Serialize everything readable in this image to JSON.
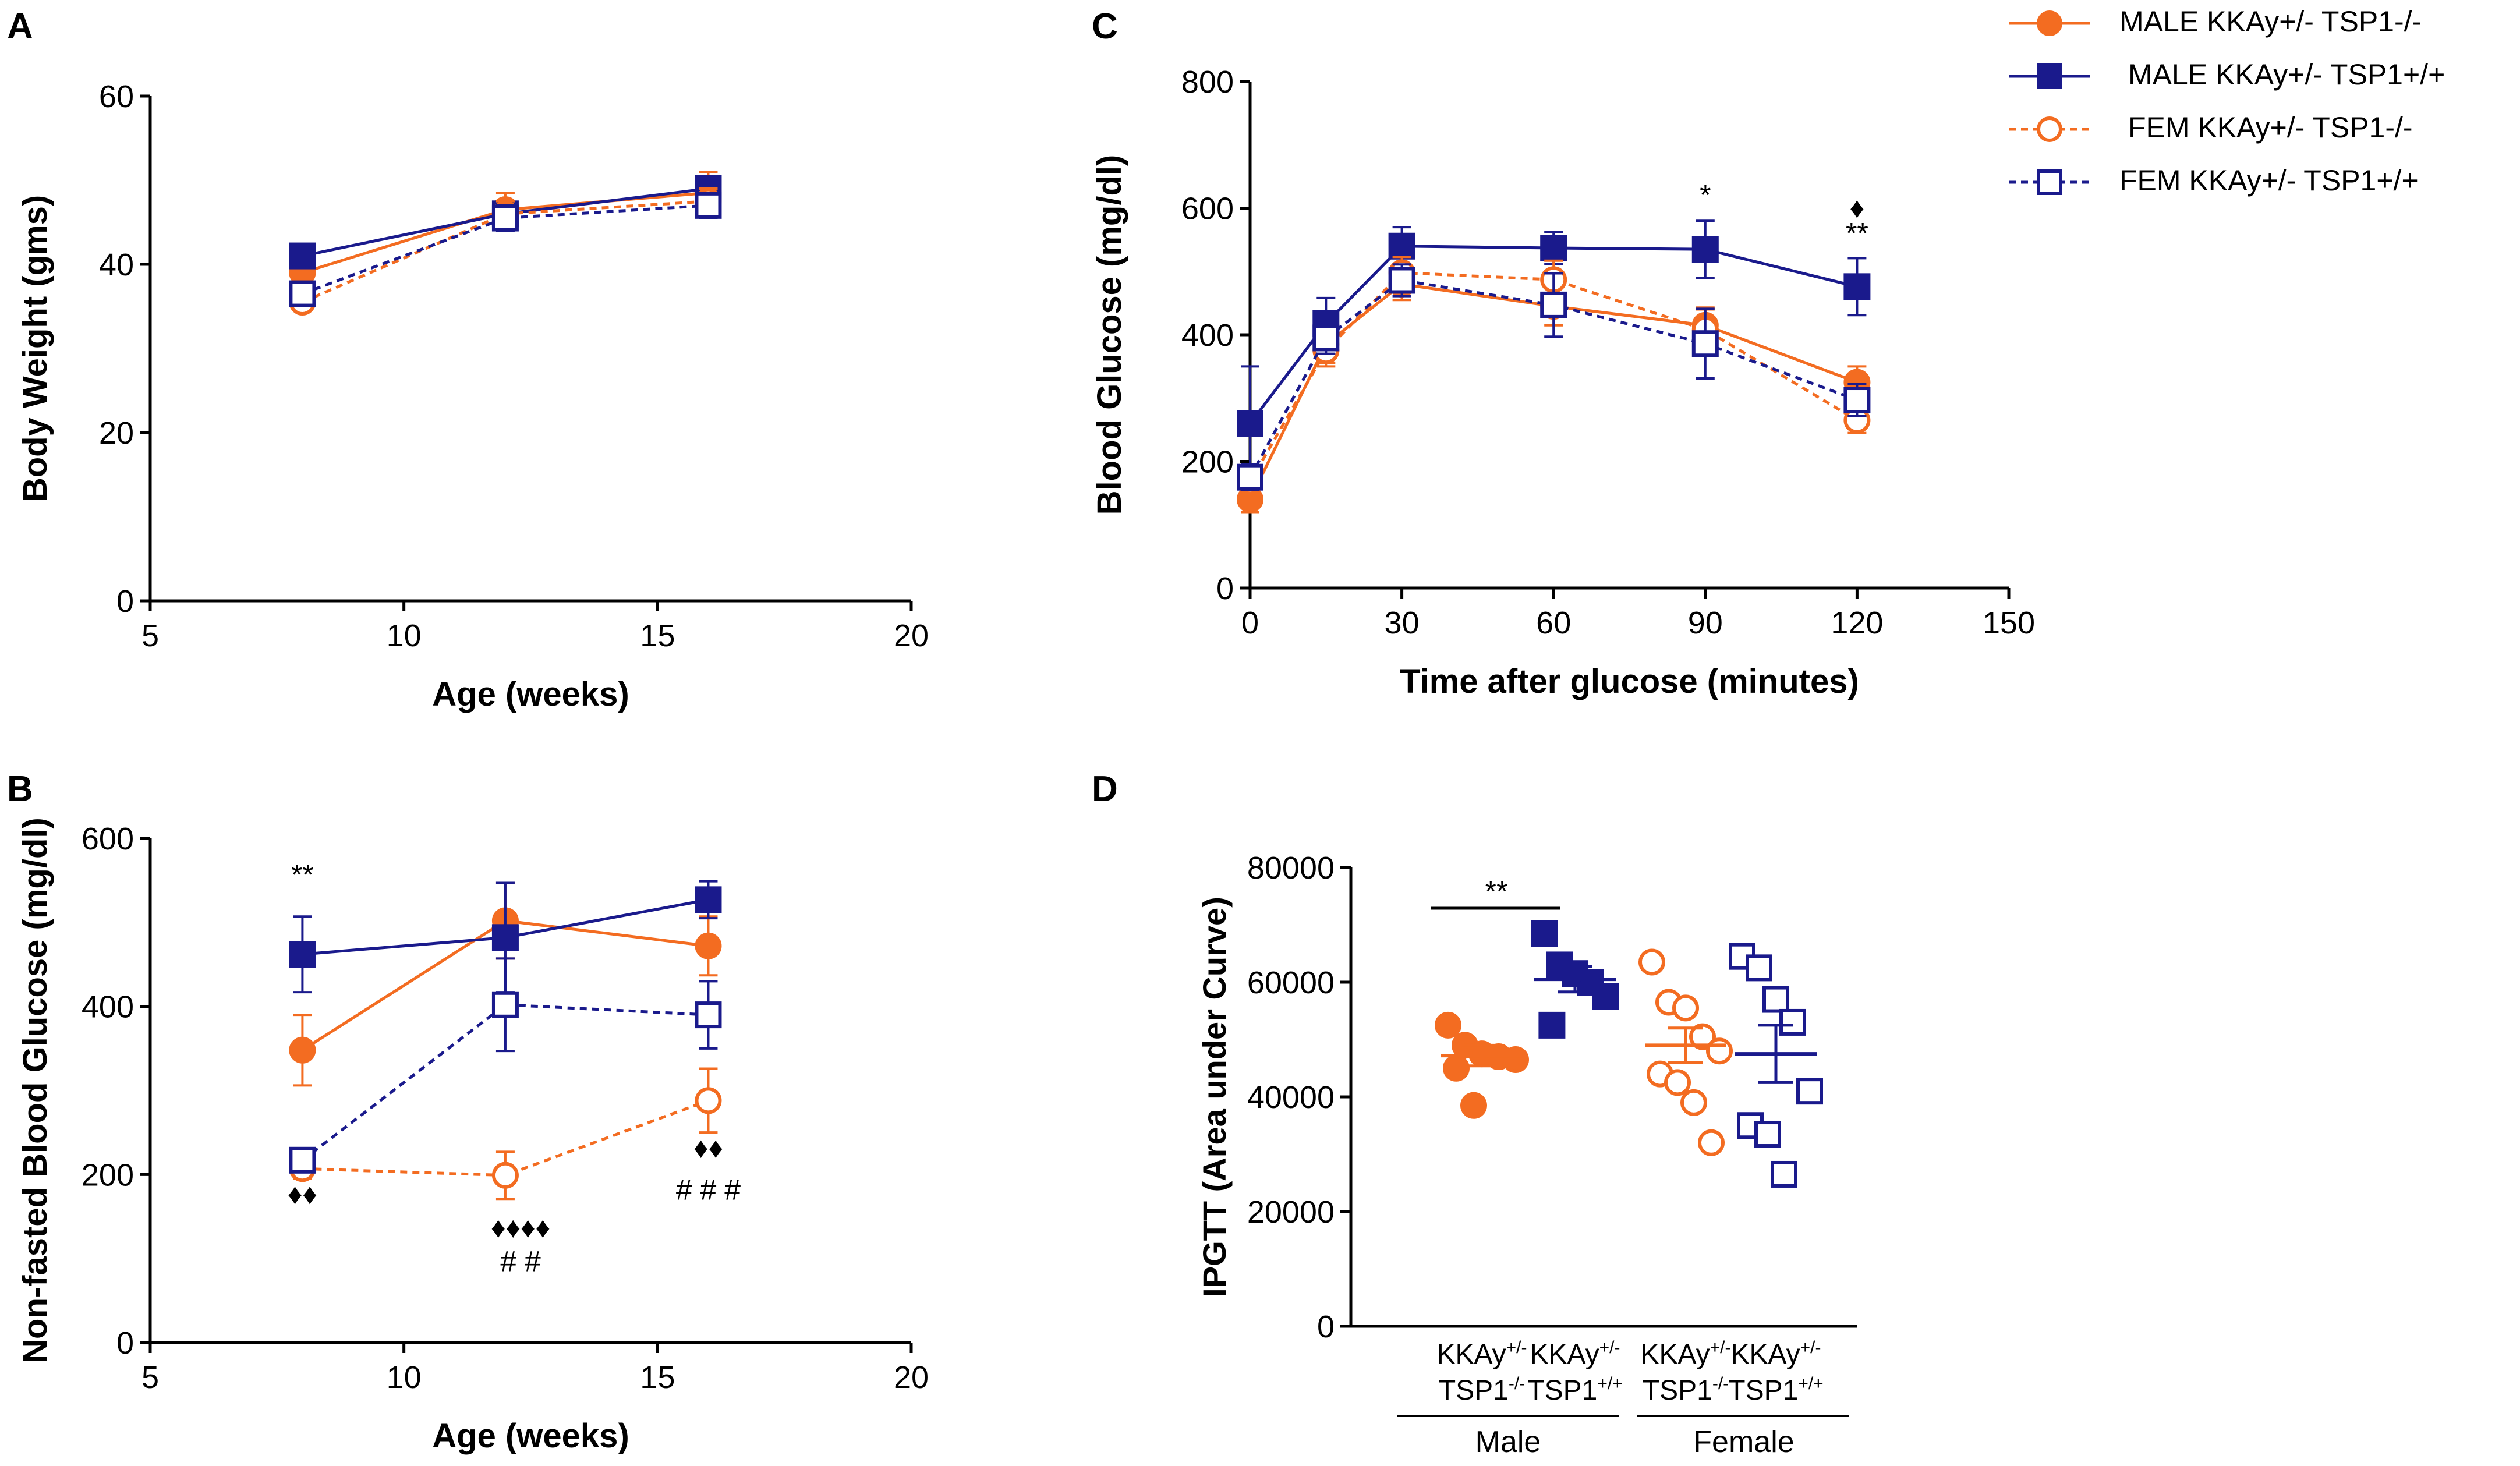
{
  "colors": {
    "orange": "#f36c21",
    "navy": "#1a1a8c",
    "black": "#000000"
  },
  "legend": {
    "entries": [
      {
        "label": "MALE KKAy+/- TSP1-/-",
        "series": "mt"
      },
      {
        "label": "MALE KKAy+/- TSP1+/+",
        "series": "mw"
      },
      {
        "label": "FEM KKAy+/- TSP1-/-",
        "series": "ft"
      },
      {
        "label": "FEM KKAy+/- TSP1+/+",
        "series": "fw"
      }
    ]
  },
  "chart_data": [
    {
      "panel": "A",
      "type": "line",
      "xlabel": "Age (weeks)",
      "ylabel": "Body Weight (gms)",
      "xlim": [
        5,
        20
      ],
      "ylim": [
        0,
        60
      ],
      "xticks": [
        5,
        10,
        15,
        20
      ],
      "yticks": [
        0,
        20,
        40,
        60
      ],
      "series": [
        {
          "key": "mt",
          "name": "MALE KKAy+/- TSP1-/-",
          "x": [
            8,
            12,
            16
          ],
          "y": [
            39,
            46.5,
            48.5
          ],
          "err": [
            1.5,
            2,
            2.5
          ]
        },
        {
          "key": "mw",
          "name": "MALE KKAy+/- TSP1+/+",
          "x": [
            8,
            12,
            16
          ],
          "y": [
            41,
            46,
            49
          ],
          "err": [
            1,
            1.5,
            1.5
          ]
        },
        {
          "key": "ft",
          "name": "FEM KKAy+/- TSP1-/-",
          "x": [
            8,
            12,
            16
          ],
          "y": [
            35.5,
            46,
            47.5
          ],
          "err": [
            1,
            1.5,
            1.5
          ]
        },
        {
          "key": "fw",
          "name": "FEM KKAy+/- TSP1+/+",
          "x": [
            8,
            12,
            16
          ],
          "y": [
            36.5,
            45.5,
            47
          ],
          "err": [
            1,
            1.5,
            1.5
          ]
        }
      ],
      "annotations": []
    },
    {
      "panel": "B",
      "type": "line",
      "xlabel": "Age (weeks)",
      "ylabel": "Non-fasted Blood Glucose (mg/dl)",
      "xlim": [
        5,
        20
      ],
      "ylim": [
        0,
        600
      ],
      "xticks": [
        5,
        10,
        15,
        20
      ],
      "yticks": [
        0,
        200,
        400,
        600
      ],
      "series": [
        {
          "key": "mt",
          "name": "MALE KKAy+/- TSP1-/-",
          "x": [
            8,
            12,
            16
          ],
          "y": [
            348,
            502,
            472
          ],
          "err": [
            42,
            45,
            35
          ]
        },
        {
          "key": "mw",
          "name": "MALE KKAy+/- TSP1+/+",
          "x": [
            8,
            12,
            16
          ],
          "y": [
            462,
            482,
            527
          ],
          "err": [
            45,
            65,
            22
          ]
        },
        {
          "key": "ft",
          "name": "FEM KKAy+/- TSP1-/-",
          "x": [
            8,
            12,
            16
          ],
          "y": [
            207,
            199,
            288
          ],
          "err": [
            12,
            28,
            38
          ]
        },
        {
          "key": "fw",
          "name": "FEM KKAy+/- TSP1+/+",
          "x": [
            8,
            12,
            16
          ],
          "y": [
            217,
            402,
            390
          ],
          "err": [
            12,
            55,
            40
          ]
        }
      ],
      "annotations": [
        {
          "text": "**",
          "x": 8,
          "y": 545
        },
        {
          "text": "♦♦",
          "x": 8,
          "y": 165
        },
        {
          "text": "♦♦♦♦",
          "x": 12.3,
          "y": 125
        },
        {
          "text": "# #",
          "x": 12.3,
          "y": 85
        },
        {
          "text": "♦♦",
          "x": 16,
          "y": 220
        },
        {
          "text": "# # #",
          "x": 16,
          "y": 170
        }
      ]
    },
    {
      "panel": "C",
      "type": "line",
      "xlabel": "Time after glucose (minutes)",
      "ylabel": "Blood Glucose (mg/dl)",
      "xlim": [
        0,
        150
      ],
      "ylim": [
        0,
        800
      ],
      "xticks": [
        0,
        30,
        60,
        90,
        120,
        150
      ],
      "yticks": [
        0,
        200,
        400,
        600,
        800
      ],
      "series": [
        {
          "key": "mt",
          "name": "MALE KKAy+/- TSP1-/-",
          "x": [
            0,
            15,
            30,
            60,
            90,
            120
          ],
          "y": [
            140,
            385,
            480,
            445,
            415,
            325
          ],
          "err": [
            20,
            30,
            25,
            30,
            25,
            25
          ]
        },
        {
          "key": "mw",
          "name": "MALE KKAy+/- TSP1+/+",
          "x": [
            0,
            15,
            30,
            60,
            90,
            120
          ],
          "y": [
            260,
            418,
            540,
            537,
            535,
            476
          ],
          "err": [
            90,
            40,
            30,
            25,
            45,
            45
          ]
        },
        {
          "key": "ft",
          "name": "FEM KKAy+/- TSP1-/-",
          "x": [
            0,
            15,
            30,
            60,
            90,
            120
          ],
          "y": [
            168,
            375,
            498,
            487,
            408,
            265
          ],
          "err": [
            20,
            25,
            25,
            30,
            35,
            20
          ]
        },
        {
          "key": "fw",
          "name": "FEM KKAy+/- TSP1+/+",
          "x": [
            0,
            15,
            30,
            60,
            90,
            120
          ],
          "y": [
            175,
            395,
            486,
            447,
            386,
            297
          ],
          "err": [
            20,
            25,
            25,
            50,
            55,
            25
          ]
        }
      ],
      "annotations": [
        {
          "text": "*",
          "x": 90,
          "y": 605
        },
        {
          "text": "♦",
          "x": 120,
          "y": 585
        },
        {
          "text": "**",
          "x": 120,
          "y": 545
        }
      ]
    },
    {
      "panel": "D",
      "type": "scatter",
      "ylabel": "IPGTT (Area under Curve)",
      "ylim": [
        0,
        80000
      ],
      "yticks": [
        0,
        20000,
        40000,
        60000,
        80000
      ],
      "groups": [
        {
          "key": "mt",
          "label_line1": "KKAy+/-",
          "label_line2": "TSP1-/-",
          "points": [
            52500,
            49000,
            47500,
            47000,
            46500,
            45000,
            38500
          ],
          "mean": 47200,
          "sem": 1800
        },
        {
          "key": "mw",
          "label_line1": "KKAy+/-",
          "label_line2": "TSP1+/+",
          "points": [
            68500,
            63000,
            61500,
            60000,
            57500,
            52500
          ],
          "mean": 60500,
          "sem": 2200
        },
        {
          "key": "ft",
          "label_line1": "KKAy+/-",
          "label_line2": "TSP1-/-",
          "points": [
            63500,
            56500,
            55500,
            50500,
            48000,
            44000,
            42500,
            39000,
            32000
          ],
          "mean": 49000,
          "sem": 3000
        },
        {
          "key": "fw",
          "label_line1": "KKAy+/-",
          "label_line2": "TSP1+/+",
          "points": [
            64500,
            62500,
            57000,
            53000,
            41000,
            35000,
            33500,
            26500
          ],
          "mean": 47500,
          "sem": 5000
        }
      ],
      "sex_groups": [
        {
          "label": "Male"
        },
        {
          "label": "Female"
        }
      ],
      "annotations": [
        {
          "text": "**"
        }
      ]
    }
  ],
  "panel_labels": [
    "A",
    "B",
    "C",
    "D"
  ]
}
